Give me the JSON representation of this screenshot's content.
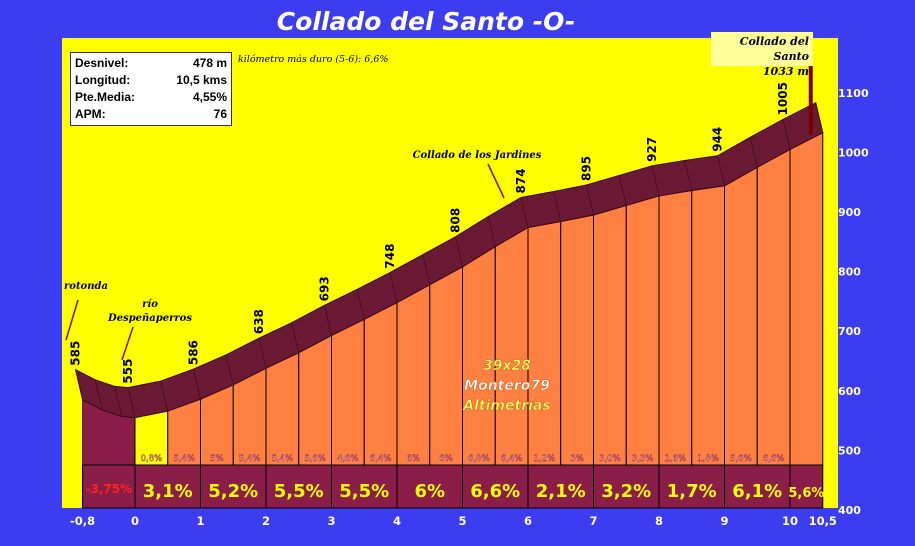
{
  "chart_data": {
    "type": "area",
    "title": "Collado del Santo -O-",
    "stats": [
      {
        "label": "Desnivel:",
        "value": "478 m"
      },
      {
        "label": "Longitud:",
        "value": "10,5 kms"
      },
      {
        "label": "Pte.Media:",
        "value": "4,55%"
      },
      {
        "label": "APM:",
        "value": "76"
      }
    ],
    "hardest_km_note": "kilómetro más duro (5-6): 6,6%",
    "summit": {
      "name": "Collado del Santo",
      "altitude_label": "1033 m"
    },
    "x_ticks": [
      {
        "km": -0.8,
        "label": "-0,8"
      },
      {
        "km": 0,
        "label": "0"
      },
      {
        "km": 1,
        "label": "1"
      },
      {
        "km": 2,
        "label": "2"
      },
      {
        "km": 3,
        "label": "3"
      },
      {
        "km": 4,
        "label": "4"
      },
      {
        "km": 5,
        "label": "5"
      },
      {
        "km": 6,
        "label": "6"
      },
      {
        "km": 7,
        "label": "7"
      },
      {
        "km": 8,
        "label": "8"
      },
      {
        "km": 9,
        "label": "9"
      },
      {
        "km": 10,
        "label": "10"
      },
      {
        "km": 10.5,
        "label": "10,5"
      }
    ],
    "y_ticks": [
      400,
      500,
      600,
      700,
      800,
      900,
      1000,
      1100
    ],
    "ylim": [
      400,
      1150
    ],
    "xlim": [
      -0.8,
      10.5
    ],
    "profile": [
      {
        "km": -0.8,
        "alt": 585
      },
      {
        "km": -0.5,
        "alt": 568
      },
      {
        "km": -0.2,
        "alt": 557
      },
      {
        "km": 0,
        "alt": 555
      },
      {
        "km": 0.5,
        "alt": 566
      },
      {
        "km": 1,
        "alt": 586
      },
      {
        "km": 1.5,
        "alt": 610
      },
      {
        "km": 2,
        "alt": 638
      },
      {
        "km": 2.5,
        "alt": 664
      },
      {
        "km": 3,
        "alt": 693
      },
      {
        "km": 3.5,
        "alt": 720
      },
      {
        "km": 4,
        "alt": 748
      },
      {
        "km": 4.5,
        "alt": 778
      },
      {
        "km": 5,
        "alt": 808
      },
      {
        "km": 5.5,
        "alt": 842
      },
      {
        "km": 6,
        "alt": 874
      },
      {
        "km": 6.5,
        "alt": 884
      },
      {
        "km": 7,
        "alt": 895
      },
      {
        "km": 7.5,
        "alt": 911
      },
      {
        "km": 8,
        "alt": 927
      },
      {
        "km": 8.5,
        "alt": 936
      },
      {
        "km": 9,
        "alt": 944
      },
      {
        "km": 9.5,
        "alt": 975
      },
      {
        "km": 10,
        "alt": 1005
      },
      {
        "km": 10.5,
        "alt": 1033
      }
    ],
    "altitude_labels": [
      {
        "km": -0.8,
        "label": "585"
      },
      {
        "km": 0,
        "label": "555"
      },
      {
        "km": 1,
        "label": "586"
      },
      {
        "km": 2,
        "label": "638"
      },
      {
        "km": 3,
        "label": "693"
      },
      {
        "km": 4,
        "label": "748"
      },
      {
        "km": 5,
        "label": "808"
      },
      {
        "km": 6,
        "label": "874"
      },
      {
        "km": 7,
        "label": "895"
      },
      {
        "km": 8,
        "label": "927"
      },
      {
        "km": 9,
        "label": "944"
      },
      {
        "km": 10,
        "label": "1005"
      }
    ],
    "half_km_slopes": [
      {
        "start": 0,
        "end": 0.5,
        "label": "0,8%"
      },
      {
        "start": 0.5,
        "end": 1,
        "label": "5,4%"
      },
      {
        "start": 1,
        "end": 1.5,
        "label": "5%"
      },
      {
        "start": 1.5,
        "end": 2,
        "label": "5,4%"
      },
      {
        "start": 2,
        "end": 2.5,
        "label": "5,4%"
      },
      {
        "start": 2.5,
        "end": 3,
        "label": "5,6%"
      },
      {
        "start": 3,
        "end": 3.5,
        "label": "4,6%"
      },
      {
        "start": 3.5,
        "end": 4,
        "label": "6,4%"
      },
      {
        "start": 4,
        "end": 4.5,
        "label": "6%"
      },
      {
        "start": 4.5,
        "end": 5,
        "label": "6%"
      },
      {
        "start": 5,
        "end": 5.5,
        "label": "6,8%"
      },
      {
        "start": 5.5,
        "end": 6,
        "label": "6,4%"
      },
      {
        "start": 6,
        "end": 6.5,
        "label": "1,2%"
      },
      {
        "start": 6.5,
        "end": 7,
        "label": "3%"
      },
      {
        "start": 7,
        "end": 7.5,
        "label": "3,0%"
      },
      {
        "start": 7.5,
        "end": 8,
        "label": "3,3%"
      },
      {
        "start": 8,
        "end": 8.5,
        "label": "1,6%"
      },
      {
        "start": 8.5,
        "end": 9,
        "label": "1,8%"
      },
      {
        "start": 9,
        "end": 9.5,
        "label": "5,6%"
      },
      {
        "start": 9.5,
        "end": 10,
        "label": "6,6%"
      }
    ],
    "km_slopes": [
      {
        "start": -0.8,
        "end": 0,
        "label": "-3,75%"
      },
      {
        "start": 0,
        "end": 1,
        "label": "3,1%"
      },
      {
        "start": 1,
        "end": 2,
        "label": "5,2%"
      },
      {
        "start": 2,
        "end": 3,
        "label": "5,5%"
      },
      {
        "start": 3,
        "end": 4,
        "label": "5,5%"
      },
      {
        "start": 4,
        "end": 5,
        "label": "6%"
      },
      {
        "start": 5,
        "end": 6,
        "label": "6,6%"
      },
      {
        "start": 6,
        "end": 7,
        "label": "2,1%"
      },
      {
        "start": 7,
        "end": 8,
        "label": "3,2%"
      },
      {
        "start": 8,
        "end": 9,
        "label": "1,7%"
      },
      {
        "start": 9,
        "end": 10,
        "label": "6,1%"
      },
      {
        "start": 10,
        "end": 10.5,
        "label": "5,6%"
      }
    ],
    "annotations": [
      {
        "id": "rotonda",
        "text": "rotonda",
        "km": -0.8
      },
      {
        "id": "rio-1",
        "text": "río",
        "km": 0
      },
      {
        "id": "rio-2",
        "text": "Despeñaperros",
        "km": 0
      },
      {
        "id": "jardines",
        "text": "Collado de los Jardines",
        "km": 5.6
      }
    ],
    "watermark": [
      "39x28",
      "Montero79",
      "Altimetrías"
    ]
  }
}
